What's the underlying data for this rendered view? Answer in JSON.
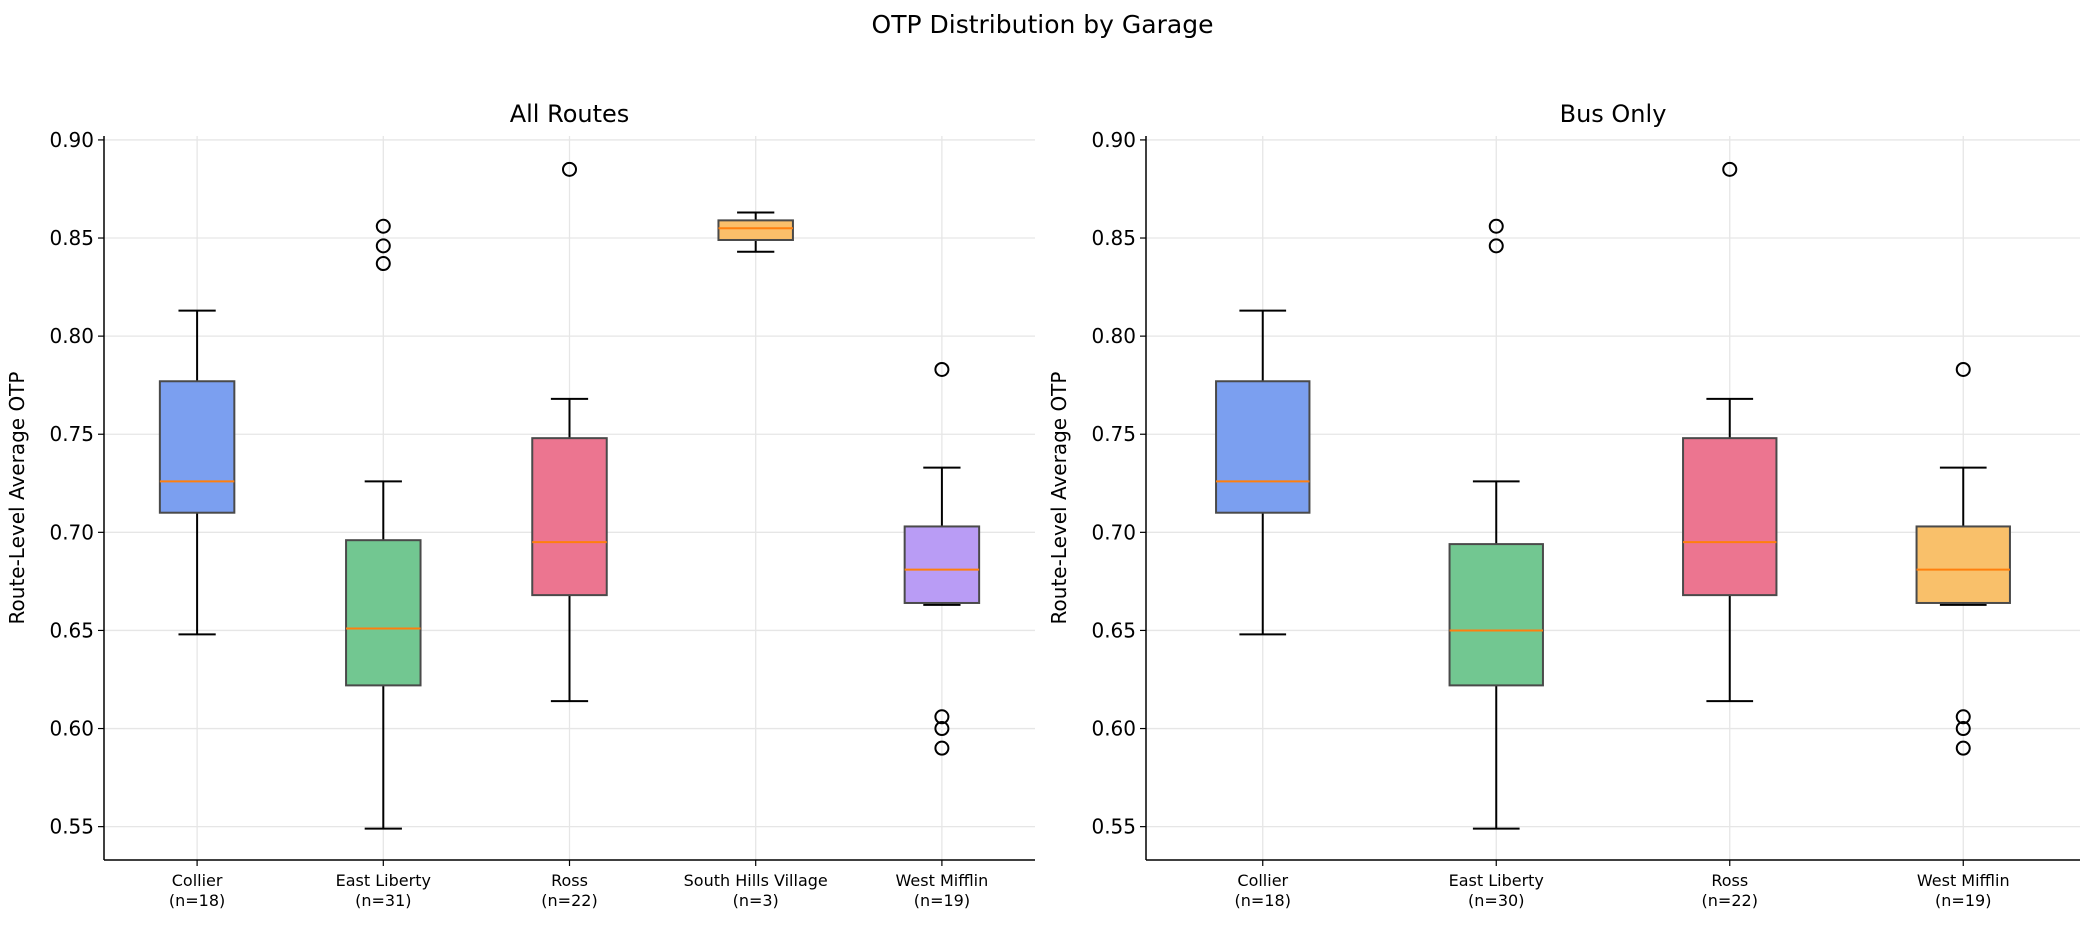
{
  "figure_title": "OTP Distribution by Garage",
  "chart_data": [
    {
      "type": "box",
      "title": "All Routes",
      "xlabel": "",
      "ylabel": "Route-Level Average OTP",
      "ylim": [
        0.533,
        0.902
      ],
      "yticks": [
        "0.55",
        "0.60",
        "0.65",
        "0.70",
        "0.75",
        "0.80",
        "0.85",
        "0.90"
      ],
      "grid": true,
      "categories": [
        "Collier",
        "East Liberty",
        "Ross",
        "South Hills Village",
        "West Mifflin"
      ],
      "counts": [
        "(n=18)",
        "(n=31)",
        "(n=22)",
        "(n=3)",
        "(n=19)"
      ],
      "colors": [
        "#7b9ff0",
        "#72c791",
        "#ec7590",
        "#fbbf6a",
        "#b99cf5"
      ],
      "boxes": [
        {
          "whisker_low": 0.648,
          "q1": 0.71,
          "median": 0.726,
          "q3": 0.777,
          "whisker_high": 0.813,
          "outliers": []
        },
        {
          "whisker_low": 0.549,
          "q1": 0.622,
          "median": 0.651,
          "q3": 0.696,
          "whisker_high": 0.726,
          "outliers": [
            0.856,
            0.846,
            0.837
          ]
        },
        {
          "whisker_low": 0.614,
          "q1": 0.668,
          "median": 0.695,
          "q3": 0.748,
          "whisker_high": 0.768,
          "outliers": [
            0.885
          ]
        },
        {
          "whisker_low": 0.843,
          "q1": 0.849,
          "median": 0.855,
          "q3": 0.859,
          "whisker_high": 0.863,
          "outliers": []
        },
        {
          "whisker_low": 0.663,
          "q1": 0.664,
          "median": 0.681,
          "q3": 0.703,
          "whisker_high": 0.733,
          "outliers": [
            0.783,
            0.606,
            0.6,
            0.59
          ]
        }
      ]
    },
    {
      "type": "box",
      "title": "Bus Only",
      "xlabel": "",
      "ylabel": "Route-Level Average OTP",
      "ylim": [
        0.533,
        0.902
      ],
      "yticks": [
        "0.55",
        "0.60",
        "0.65",
        "0.70",
        "0.75",
        "0.80",
        "0.85",
        "0.90"
      ],
      "grid": true,
      "categories": [
        "Collier",
        "East Liberty",
        "Ross",
        "West Mifflin"
      ],
      "counts": [
        "(n=18)",
        "(n=30)",
        "(n=22)",
        "(n=19)"
      ],
      "colors": [
        "#7b9ff0",
        "#72c791",
        "#ec7590",
        "#f9c06a"
      ],
      "boxes": [
        {
          "whisker_low": 0.648,
          "q1": 0.71,
          "median": 0.726,
          "q3": 0.777,
          "whisker_high": 0.813,
          "outliers": []
        },
        {
          "whisker_low": 0.549,
          "q1": 0.622,
          "median": 0.65,
          "q3": 0.694,
          "whisker_high": 0.726,
          "outliers": [
            0.856,
            0.846
          ]
        },
        {
          "whisker_low": 0.614,
          "q1": 0.668,
          "median": 0.695,
          "q3": 0.748,
          "whisker_high": 0.768,
          "outliers": [
            0.885
          ]
        },
        {
          "whisker_low": 0.663,
          "q1": 0.664,
          "median": 0.681,
          "q3": 0.703,
          "whisker_high": 0.733,
          "outliers": [
            0.783,
            0.606,
            0.6,
            0.59
          ]
        }
      ]
    }
  ]
}
